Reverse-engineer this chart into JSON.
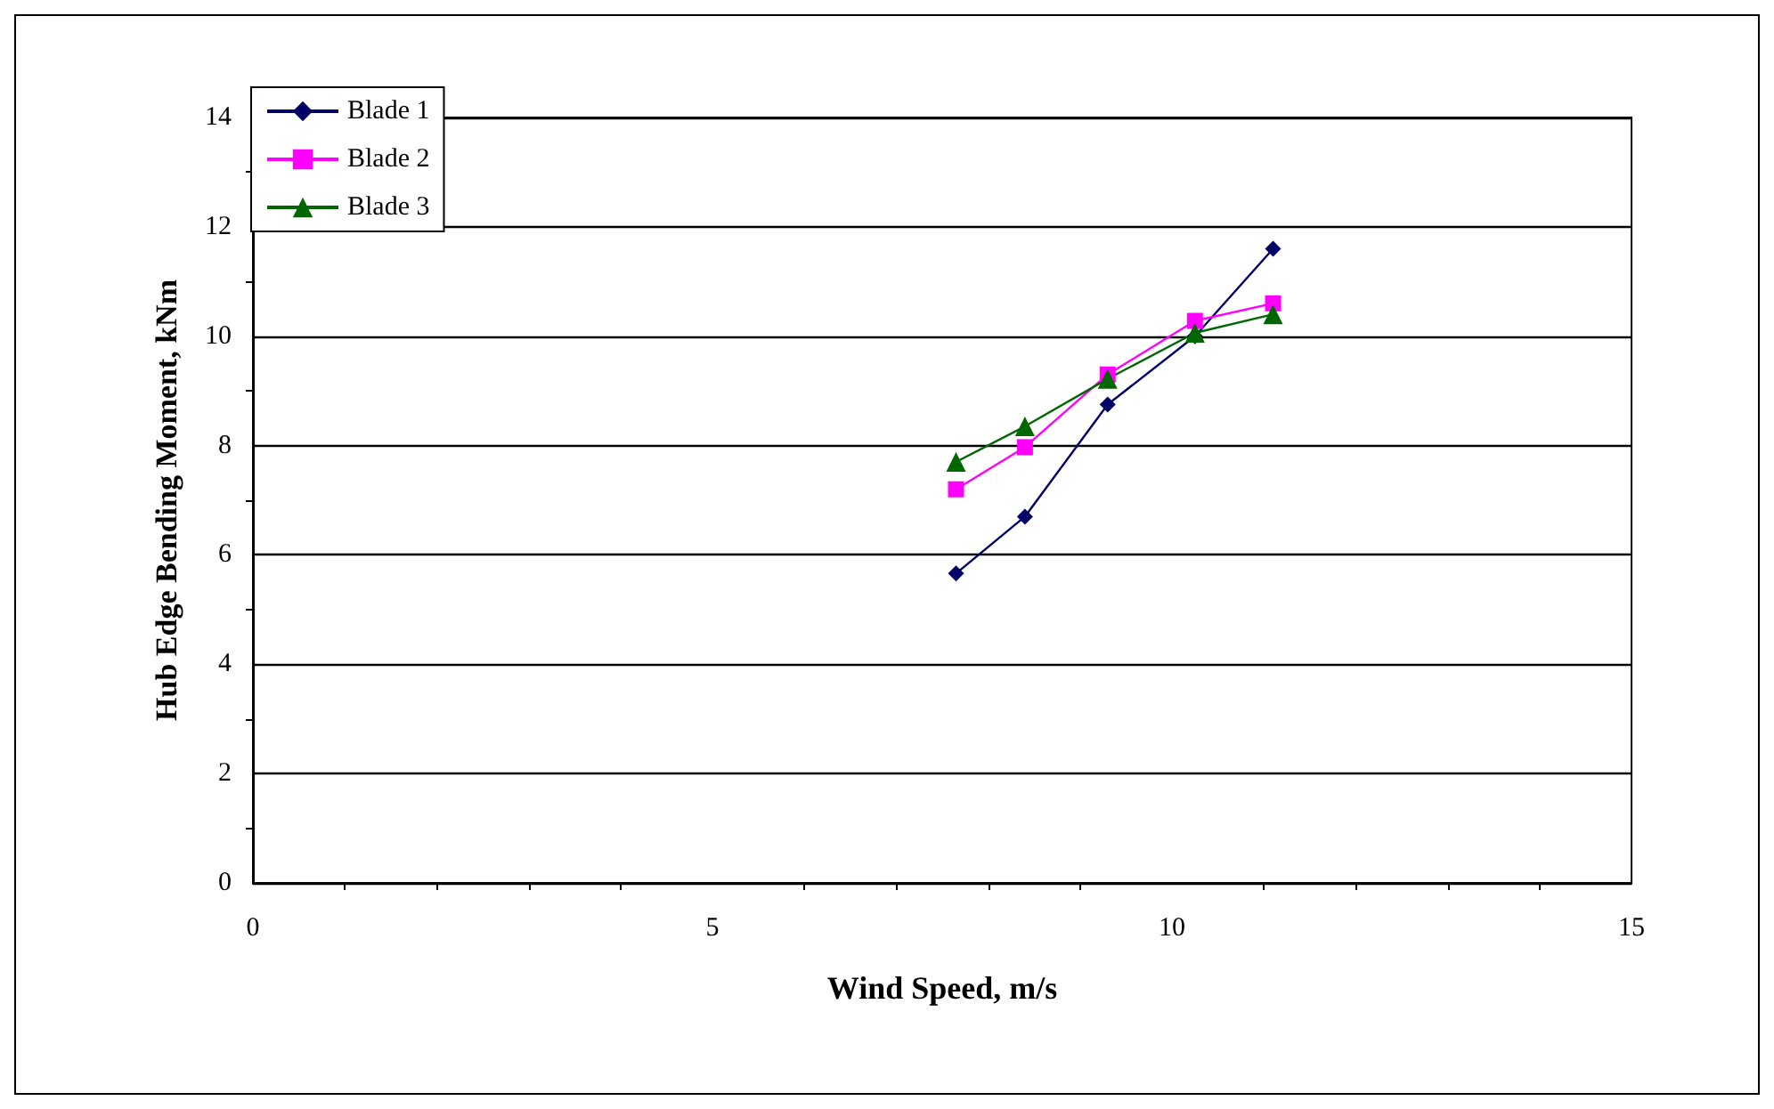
{
  "chart_data": {
    "type": "line",
    "xlabel": "Wind Speed, m/s",
    "ylabel": "Hub Edge Bending Moment, kNm",
    "x": [
      7.65,
      8.4,
      9.3,
      10.25,
      11.1
    ],
    "series": [
      {
        "name": "Blade 1",
        "color": "#000066",
        "marker": "diamond",
        "values": [
          5.66,
          6.7,
          8.75,
          10.0,
          11.6
        ]
      },
      {
        "name": "Blade 2",
        "color": "#ff00ff",
        "marker": "square",
        "values": [
          7.2,
          7.97,
          9.3,
          10.28,
          10.6
        ]
      },
      {
        "name": "Blade 3",
        "color": "#006600",
        "marker": "triangle",
        "values": [
          7.7,
          8.35,
          9.22,
          10.06,
          10.4
        ]
      }
    ],
    "xlim": [
      0,
      15
    ],
    "xticks": [
      0,
      5,
      10,
      15
    ],
    "ylim": [
      0,
      14
    ],
    "yticks": [
      0,
      2,
      4,
      6,
      8,
      10,
      12,
      14
    ],
    "grid": "y",
    "legend": "top left",
    "line_style": "solid"
  }
}
